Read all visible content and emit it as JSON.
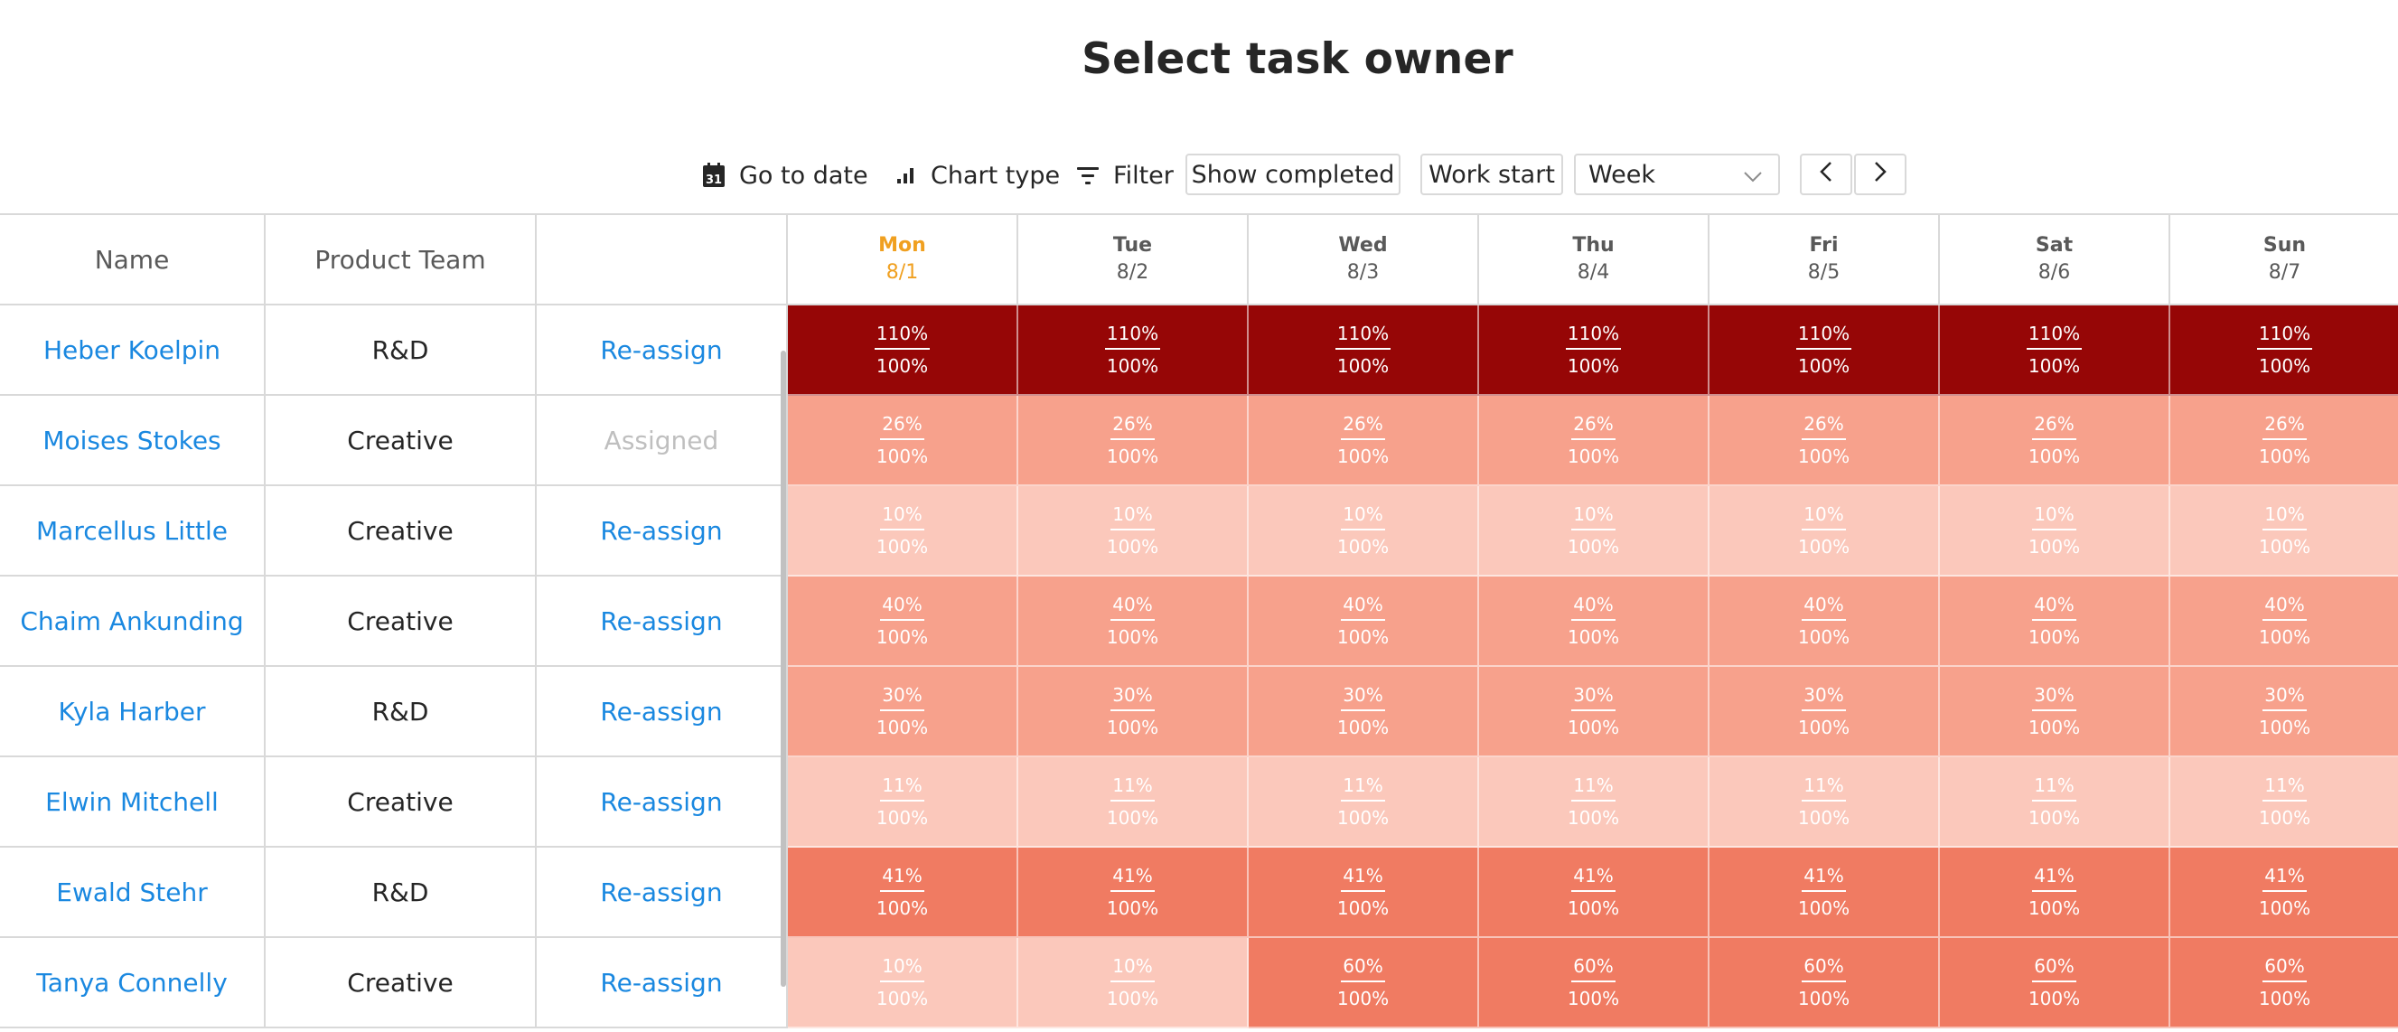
{
  "title": "Select task owner",
  "toolbar": {
    "go_to_date": "Go to date",
    "go_to_date_icon": "calendar-icon",
    "go_to_date_icon_text": "31",
    "chart_type": "Chart type",
    "chart_type_icon": "bar-chart-icon",
    "filter": "Filter",
    "filter_icon": "filter-icon",
    "show_completed": "Show completed",
    "work_start": "Work start",
    "period_select": "Week",
    "prev_icon": "chevron-left-icon",
    "next_icon": "chevron-right-icon"
  },
  "columns": {
    "name": "Name",
    "team": "Product Team",
    "action": ""
  },
  "days": [
    {
      "name": "Mon",
      "date": "8/1",
      "today": true
    },
    {
      "name": "Tue",
      "date": "8/2",
      "today": false
    },
    {
      "name": "Wed",
      "date": "8/3",
      "today": false
    },
    {
      "name": "Thu",
      "date": "8/4",
      "today": false
    },
    {
      "name": "Fri",
      "date": "8/5",
      "today": false
    },
    {
      "name": "Sat",
      "date": "8/6",
      "today": false
    },
    {
      "name": "Sun",
      "date": "8/7",
      "today": false
    }
  ],
  "colors": {
    "header_text": "#595959",
    "today": "#f0a020",
    "link": "#1a88e0",
    "disabled": "#bfbfbf",
    "load_110": "#960606",
    "load_60": "#f07b62",
    "load_41": "#f07b62",
    "load_40": "#f7a18c",
    "load_30": "#f7a18c",
    "load_26": "#f7a18c",
    "load_11": "#fbc8bb",
    "load_10": "#fbc8bb"
  },
  "rows": [
    {
      "name": "Heber Koelpin",
      "team": "R&D",
      "action": "Re-assign",
      "action_enabled": true,
      "loads": [
        "110%",
        "110%",
        "110%",
        "110%",
        "110%",
        "110%",
        "110%"
      ],
      "capacity": [
        "100%",
        "100%",
        "100%",
        "100%",
        "100%",
        "100%",
        "100%"
      ],
      "colors": [
        "#960606",
        "#960606",
        "#960606",
        "#960606",
        "#960606",
        "#960606",
        "#960606"
      ]
    },
    {
      "name": "Moises Stokes",
      "team": "Creative",
      "action": "Assigned",
      "action_enabled": false,
      "loads": [
        "26%",
        "26%",
        "26%",
        "26%",
        "26%",
        "26%",
        "26%"
      ],
      "capacity": [
        "100%",
        "100%",
        "100%",
        "100%",
        "100%",
        "100%",
        "100%"
      ],
      "colors": [
        "#f7a18c",
        "#f7a18c",
        "#f7a18c",
        "#f7a18c",
        "#f7a18c",
        "#f7a18c",
        "#f7a18c"
      ]
    },
    {
      "name": "Marcellus Little",
      "team": "Creative",
      "action": "Re-assign",
      "action_enabled": true,
      "loads": [
        "10%",
        "10%",
        "10%",
        "10%",
        "10%",
        "10%",
        "10%"
      ],
      "capacity": [
        "100%",
        "100%",
        "100%",
        "100%",
        "100%",
        "100%",
        "100%"
      ],
      "colors": [
        "#fbc8bb",
        "#fbc8bb",
        "#fbc8bb",
        "#fbc8bb",
        "#fbc8bb",
        "#fbc8bb",
        "#fbc8bb"
      ]
    },
    {
      "name": "Chaim Ankunding",
      "team": "Creative",
      "action": "Re-assign",
      "action_enabled": true,
      "loads": [
        "40%",
        "40%",
        "40%",
        "40%",
        "40%",
        "40%",
        "40%"
      ],
      "capacity": [
        "100%",
        "100%",
        "100%",
        "100%",
        "100%",
        "100%",
        "100%"
      ],
      "colors": [
        "#f7a18c",
        "#f7a18c",
        "#f7a18c",
        "#f7a18c",
        "#f7a18c",
        "#f7a18c",
        "#f7a18c"
      ]
    },
    {
      "name": "Kyla Harber",
      "team": "R&D",
      "action": "Re-assign",
      "action_enabled": true,
      "loads": [
        "30%",
        "30%",
        "30%",
        "30%",
        "30%",
        "30%",
        "30%"
      ],
      "capacity": [
        "100%",
        "100%",
        "100%",
        "100%",
        "100%",
        "100%",
        "100%"
      ],
      "colors": [
        "#f7a18c",
        "#f7a18c",
        "#f7a18c",
        "#f7a18c",
        "#f7a18c",
        "#f7a18c",
        "#f7a18c"
      ]
    },
    {
      "name": "Elwin Mitchell",
      "team": "Creative",
      "action": "Re-assign",
      "action_enabled": true,
      "loads": [
        "11%",
        "11%",
        "11%",
        "11%",
        "11%",
        "11%",
        "11%"
      ],
      "capacity": [
        "100%",
        "100%",
        "100%",
        "100%",
        "100%",
        "100%",
        "100%"
      ],
      "colors": [
        "#fbc8bb",
        "#fbc8bb",
        "#fbc8bb",
        "#fbc8bb",
        "#fbc8bb",
        "#fbc8bb",
        "#fbc8bb"
      ]
    },
    {
      "name": "Ewald Stehr",
      "team": "R&D",
      "action": "Re-assign",
      "action_enabled": true,
      "loads": [
        "41%",
        "41%",
        "41%",
        "41%",
        "41%",
        "41%",
        "41%"
      ],
      "capacity": [
        "100%",
        "100%",
        "100%",
        "100%",
        "100%",
        "100%",
        "100%"
      ],
      "colors": [
        "#f07b62",
        "#f07b62",
        "#f07b62",
        "#f07b62",
        "#f07b62",
        "#f07b62",
        "#f07b62"
      ]
    },
    {
      "name": "Tanya Connelly",
      "team": "Creative",
      "action": "Re-assign",
      "action_enabled": true,
      "loads": [
        "10%",
        "10%",
        "60%",
        "60%",
        "60%",
        "60%",
        "60%"
      ],
      "capacity": [
        "100%",
        "100%",
        "100%",
        "100%",
        "100%",
        "100%",
        "100%"
      ],
      "colors": [
        "#fbc8bb",
        "#fbc8bb",
        "#f07b62",
        "#f07b62",
        "#f07b62",
        "#f07b62",
        "#f07b62"
      ]
    }
  ]
}
